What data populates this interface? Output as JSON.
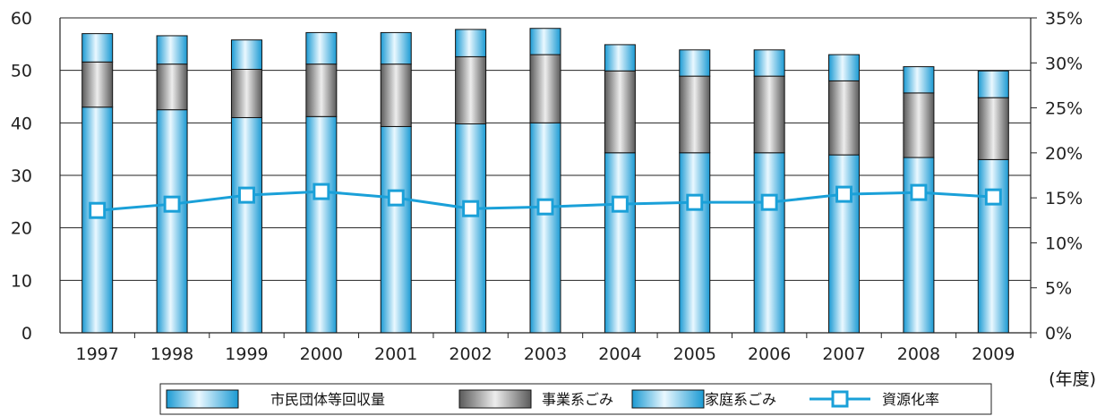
{
  "chart_data": {
    "type": "bar",
    "stacked": true,
    "categories": [
      "1997",
      "1998",
      "1999",
      "2000",
      "2001",
      "2002",
      "2003",
      "2004",
      "2005",
      "2006",
      "2007",
      "2008",
      "2009"
    ],
    "series": [
      {
        "name": "家庭系ごみ",
        "kind": "bar",
        "values": [
          43.0,
          42.5,
          41.0,
          41.2,
          39.3,
          39.8,
          40.0,
          34.3,
          34.3,
          34.3,
          33.9,
          33.4,
          33.0
        ]
      },
      {
        "name": "事業系ごみ",
        "kind": "bar",
        "values": [
          8.6,
          8.7,
          9.2,
          10.0,
          11.9,
          12.8,
          13.0,
          15.6,
          14.6,
          14.6,
          14.1,
          12.3,
          11.8
        ]
      },
      {
        "name": "市民団体等回収量",
        "kind": "bar",
        "values": [
          5.4,
          5.4,
          5.6,
          6.0,
          6.0,
          5.2,
          5.0,
          5.0,
          5.0,
          5.0,
          5.0,
          5.0,
          5.1
        ]
      },
      {
        "name": "資源化率",
        "kind": "line",
        "axis": "right",
        "values": [
          13.6,
          14.3,
          15.3,
          15.7,
          15.0,
          13.8,
          14.0,
          14.3,
          14.5,
          14.5,
          15.4,
          15.6,
          15.1
        ]
      }
    ],
    "ylim": [
      0,
      60
    ],
    "yticks": [
      "0",
      "10",
      "20",
      "30",
      "40",
      "50",
      "60"
    ],
    "y2lim": [
      0,
      35
    ],
    "y2ticks": [
      "0%",
      "5%",
      "10%",
      "15%",
      "20%",
      "25%",
      "30%",
      "35%"
    ],
    "xunit": "(年度)",
    "grid": "horizontal",
    "legend_position": "bottom",
    "colors": {
      "household": "#29abe2",
      "business": "#808080",
      "civic": "#1fa3dc",
      "rate": "#1aa0d8"
    }
  }
}
